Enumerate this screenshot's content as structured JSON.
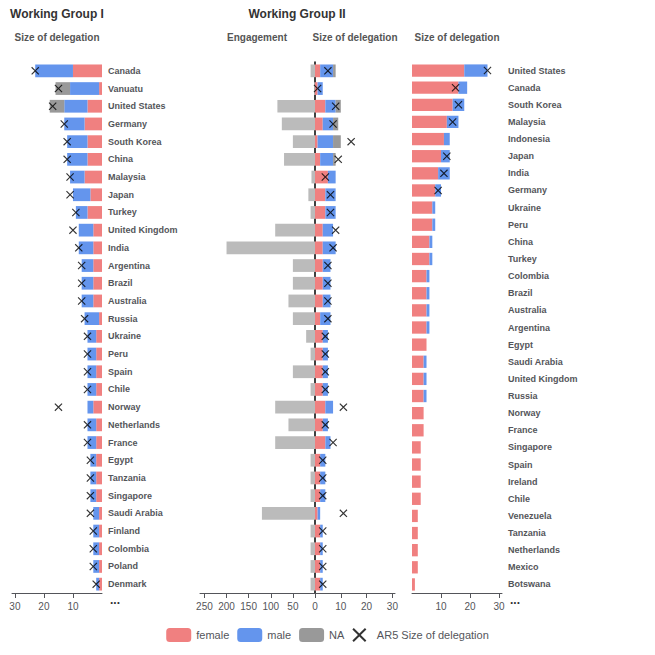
{
  "chart_data": [
    {
      "type": "bar",
      "orientation": "horizontal",
      "stacked": true,
      "title": "Working Group I",
      "subtitle": "Size of delegation",
      "categories": [
        "Canada",
        "Vanuatu",
        "United States",
        "Germany",
        "South Korea",
        "China",
        "Malaysia",
        "Japan",
        "Turkey",
        "United Kingdom",
        "India",
        "Argentina",
        "Brazil",
        "Australia",
        "Russia",
        "Ukraine",
        "Peru",
        "Spain",
        "Chile",
        "Norway",
        "Netherlands",
        "France",
        "Egypt",
        "Tanzania",
        "Singapore",
        "Saudi Arabia",
        "Finland",
        "Colombia",
        "Poland",
        "Denmark"
      ],
      "series": [
        {
          "name": "female",
          "color": "#F08080",
          "values": [
            10,
            1,
            5,
            6,
            5,
            5,
            6,
            4,
            5,
            3,
            3,
            3,
            3,
            3,
            1,
            2,
            2,
            2,
            2,
            3,
            2,
            2,
            2,
            2,
            2,
            1,
            1,
            1,
            1,
            1
          ]
        },
        {
          "name": "male",
          "color": "#6495ED",
          "values": [
            13,
            10,
            8,
            7,
            7,
            7,
            5,
            6,
            4,
            5,
            5,
            4,
            4,
            4,
            5,
            3,
            3,
            3,
            3,
            2,
            3,
            3,
            2,
            2,
            2,
            2,
            2,
            2,
            2,
            1
          ]
        },
        {
          "name": "NA",
          "color": "#999999",
          "values": [
            0,
            5,
            5,
            0,
            0,
            0,
            0,
            0,
            0,
            0,
            0,
            0,
            0,
            0,
            0,
            0,
            0,
            0,
            0,
            0,
            0,
            0,
            0,
            0,
            0,
            0,
            0,
            0,
            0,
            0
          ]
        },
        {
          "name": "AR5 Size of delegation",
          "type": "scatter",
          "marker": "x",
          "color": "#000000",
          "values": [
            23,
            15,
            17,
            13,
            12,
            12,
            11,
            11,
            9,
            10,
            8,
            7,
            7,
            7,
            6,
            5,
            5,
            5,
            5,
            15,
            5,
            5,
            4,
            4,
            4,
            4,
            3,
            3,
            3,
            2
          ]
        }
      ],
      "xlim": [
        31,
        0
      ],
      "xticks": [
        10,
        20,
        30
      ],
      "grid": false,
      "legend": "bottom",
      "annotations": [
        "..."
      ]
    },
    {
      "type": "bar",
      "orientation": "horizontal",
      "title": "Working Group II",
      "subtitle": "Engagement",
      "categories": [
        "Canada",
        "Vanuatu",
        "United States",
        "Germany",
        "South Korea",
        "China",
        "Malaysia",
        "Japan",
        "Turkey",
        "United Kingdom",
        "India",
        "Argentina",
        "Brazil",
        "Australia",
        "Russia",
        "Ukraine",
        "Peru",
        "Spain",
        "Chile",
        "Norway",
        "Netherlands",
        "France",
        "Egypt",
        "Tanzania",
        "Singapore",
        "Saudi Arabia",
        "Finland",
        "Colombia",
        "Poland",
        "Denmark"
      ],
      "series": [
        {
          "color": "#BBBBBB",
          "values": [
            10,
            2,
            85,
            75,
            50,
            70,
            8,
            15,
            10,
            90,
            200,
            50,
            50,
            60,
            50,
            20,
            10,
            50,
            10,
            90,
            60,
            90,
            10,
            10,
            10,
            120,
            10,
            10,
            10,
            10
          ]
        }
      ],
      "xlim": [
        260,
        0
      ],
      "xticks": [
        250,
        200,
        150,
        100,
        50
      ],
      "grid": false
    },
    {
      "type": "bar",
      "orientation": "horizontal",
      "stacked": true,
      "subtitle": "Size of delegation",
      "categories": [
        "Canada",
        "Vanuatu",
        "United States",
        "Germany",
        "South Korea",
        "China",
        "Malaysia",
        "Japan",
        "Turkey",
        "United Kingdom",
        "India",
        "Argentina",
        "Brazil",
        "Australia",
        "Russia",
        "Ukraine",
        "Peru",
        "Spain",
        "Chile",
        "Norway",
        "Netherlands",
        "France",
        "Egypt",
        "Tanzania",
        "Singapore",
        "Saudi Arabia",
        "Finland",
        "Colombia",
        "Poland",
        "Denmark"
      ],
      "series": [
        {
          "name": "female",
          "color": "#F08080",
          "values": [
            2,
            1,
            4,
            3,
            1,
            2,
            5,
            4,
            4,
            3,
            3,
            3,
            3,
            3,
            2,
            3,
            3,
            3,
            3,
            4,
            3,
            4,
            2,
            2,
            2,
            1,
            2,
            2,
            2,
            2
          ]
        },
        {
          "name": "male",
          "color": "#6495ED",
          "values": [
            5,
            2,
            4,
            4,
            6,
            5,
            3,
            4,
            4,
            4,
            5,
            3,
            3,
            3,
            4,
            2,
            2,
            2,
            2,
            3,
            2,
            2,
            2,
            2,
            2,
            1,
            1,
            1,
            1,
            1
          ]
        },
        {
          "name": "NA",
          "color": "#999999",
          "values": [
            1,
            0,
            2,
            2,
            3,
            1,
            0,
            0,
            0,
            0,
            0,
            0,
            0,
            0,
            0,
            0,
            0,
            0,
            0,
            0,
            0,
            0,
            0,
            0,
            0,
            0,
            0,
            0,
            0,
            0
          ]
        },
        {
          "name": "AR5 Size of delegation",
          "type": "scatter",
          "marker": "x",
          "color": "#000000",
          "values": [
            5,
            1,
            8,
            7,
            14,
            9,
            4,
            6,
            6,
            8,
            7,
            5,
            5,
            5,
            5,
            4,
            4,
            4,
            4,
            11,
            4,
            7,
            3,
            3,
            3,
            11,
            3,
            3,
            3,
            3
          ]
        }
      ],
      "xlim": [
        0,
        31
      ],
      "xticks": [
        0,
        10,
        20,
        30
      ],
      "grid": false
    },
    {
      "type": "bar",
      "orientation": "horizontal",
      "stacked": true,
      "subtitle": "Size of delegation",
      "categories": [
        "United States",
        "Canada",
        "South Korea",
        "Malaysia",
        "Indonesia",
        "Japan",
        "India",
        "Germany",
        "Ukraine",
        "Peru",
        "China",
        "Turkey",
        "Colombia",
        "Brazil",
        "Australia",
        "Argentina",
        "Egypt",
        "Saudi Arabia",
        "United Kingdom",
        "Russia",
        "Norway",
        "France",
        "Singapore",
        "Spain",
        "Ireland",
        "Chile",
        "Venezuela",
        "Tanzania",
        "Netherlands",
        "Mexico",
        "Botswana"
      ],
      "series": [
        {
          "name": "female",
          "color": "#F08080",
          "values": [
            18,
            16,
            14,
            12,
            11,
            10,
            9,
            8,
            7,
            7,
            6,
            6,
            5,
            5,
            5,
            5,
            5,
            4,
            4,
            4,
            4,
            4,
            3,
            3,
            3,
            3,
            2,
            2,
            2,
            2,
            1
          ]
        },
        {
          "name": "male",
          "color": "#6495ED",
          "values": [
            8,
            3,
            4,
            4,
            2,
            3,
            4,
            2,
            1,
            1,
            1,
            1,
            1,
            1,
            1,
            1,
            0,
            1,
            1,
            1,
            0,
            0,
            0,
            0,
            0,
            0,
            0,
            0,
            0,
            0,
            0
          ]
        },
        {
          "name": "AR5 Size of delegation",
          "type": "scatter",
          "marker": "x",
          "color": "#000000",
          "values": [
            26,
            15,
            16,
            14,
            null,
            12,
            11,
            9,
            null,
            null,
            null,
            null,
            null,
            null,
            null,
            null,
            null,
            null,
            null,
            null,
            null,
            null,
            null,
            null,
            null,
            null,
            null,
            null,
            null,
            null,
            null
          ]
        }
      ],
      "xlim": [
        0,
        31
      ],
      "xticks": [
        10,
        20,
        30
      ],
      "grid": false,
      "annotations": [
        "..."
      ]
    }
  ]
}
